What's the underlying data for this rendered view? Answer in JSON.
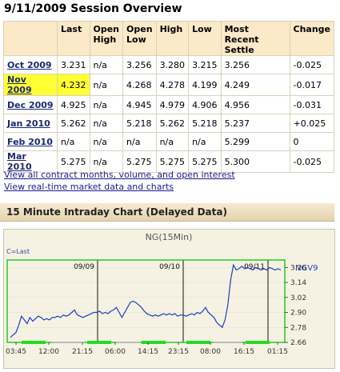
{
  "page": {
    "title": "9/11/2009 Session Overview"
  },
  "table": {
    "headers": [
      "Last",
      "Open High",
      "Open Low",
      "High",
      "Low",
      "Most Recent Settle",
      "Change"
    ],
    "headers_lines": [
      [
        "Last"
      ],
      [
        "Open",
        "High"
      ],
      [
        "Open",
        "Low"
      ],
      [
        "High"
      ],
      [
        "Low"
      ],
      [
        "Most Recent",
        "Settle"
      ],
      [
        "Change"
      ]
    ],
    "rows": [
      {
        "month": "Oct 2009",
        "last": "3.231",
        "open_high": "n/a",
        "open_low": "3.256",
        "high": "3.280",
        "low": "3.215",
        "settle": "3.256",
        "change": "-0.025",
        "highlight": false
      },
      {
        "month": "Nov 2009",
        "last": "4.232",
        "open_high": "n/a",
        "open_low": "4.268",
        "high": "4.278",
        "low": "4.199",
        "settle": "4.249",
        "change": "-0.017",
        "highlight": true
      },
      {
        "month": "Dec 2009",
        "last": "4.925",
        "open_high": "n/a",
        "open_low": "4.945",
        "high": "4.979",
        "low": "4.906",
        "settle": "4.956",
        "change": "-0.031",
        "highlight": false
      },
      {
        "month": "Jan 2010",
        "last": "5.262",
        "open_high": "n/a",
        "open_low": "5.218",
        "high": "5.262",
        "low": "5.218",
        "settle": "5.237",
        "change": "+0.025",
        "highlight": false
      },
      {
        "month": "Feb 2010",
        "last": "n/a",
        "open_high": "n/a",
        "open_low": "n/a",
        "high": "n/a",
        "low": "n/a",
        "settle": "5.299",
        "change": "0",
        "highlight": false
      },
      {
        "month": "Mar 2010",
        "last": "5.275",
        "open_high": "n/a",
        "open_low": "5.275",
        "high": "5.275",
        "low": "5.275",
        "settle": "5.300",
        "change": "-0.025",
        "highlight": false
      }
    ]
  },
  "links": {
    "contracts": "View all contract months, volume, and open interest",
    "realtime": "View real-time market data and charts"
  },
  "section": {
    "title": "15 Minute Intraday Chart (Delayed Data)"
  },
  "colors": {
    "highlight": "#ffff33",
    "header_bg": "#fbe9c8",
    "plot_border": "#22cc22",
    "line": "#1a3fbf",
    "session_bar": "#22dd22"
  },
  "chart_data": {
    "type": "line",
    "title": "NG(15Min)",
    "legend": "C=Last",
    "symbol": "NGV9",
    "ylim": [
      2.66,
      3.32
    ],
    "yticks": [
      "3.26",
      "3.14",
      "3.02",
      "2.90",
      "2.78",
      "2.66"
    ],
    "xticks": [
      "03:45",
      "12:00",
      "21:15",
      "06:00",
      "14:15",
      "23:15",
      "08:00",
      "16:15",
      "01:15"
    ],
    "day_markers": [
      "09/09",
      "09/10",
      "09/11"
    ],
    "series": [
      {
        "values": [
          2.7,
          2.72,
          2.74,
          2.8,
          2.87,
          2.84,
          2.81,
          2.86,
          2.83,
          2.85,
          2.87,
          2.86,
          2.84,
          2.85,
          2.84,
          2.86,
          2.86,
          2.87,
          2.86,
          2.88,
          2.87,
          2.88,
          2.9,
          2.92,
          2.88,
          2.87,
          2.86,
          2.87,
          2.88,
          2.89,
          2.9,
          2.9,
          2.91,
          2.89,
          2.9,
          2.89,
          2.91,
          2.92,
          2.94,
          2.9,
          2.86,
          2.9,
          2.94,
          2.98,
          2.99,
          2.98,
          2.96,
          2.94,
          2.91,
          2.89,
          2.88,
          2.87,
          2.88,
          2.87,
          2.88,
          2.89,
          2.88,
          2.89,
          2.88,
          2.89,
          2.87,
          2.88,
          2.88,
          2.87,
          2.88,
          2.89,
          2.88,
          2.9,
          2.89,
          2.91,
          2.94,
          2.9,
          2.88,
          2.86,
          2.82,
          2.8,
          2.78,
          2.84,
          2.96,
          3.16,
          3.28,
          3.24,
          3.25,
          3.27,
          3.25,
          3.26,
          3.25,
          3.24,
          3.26,
          3.25,
          3.24,
          3.25,
          3.24,
          3.26,
          3.25,
          3.24,
          3.25,
          3.24
        ]
      }
    ]
  }
}
